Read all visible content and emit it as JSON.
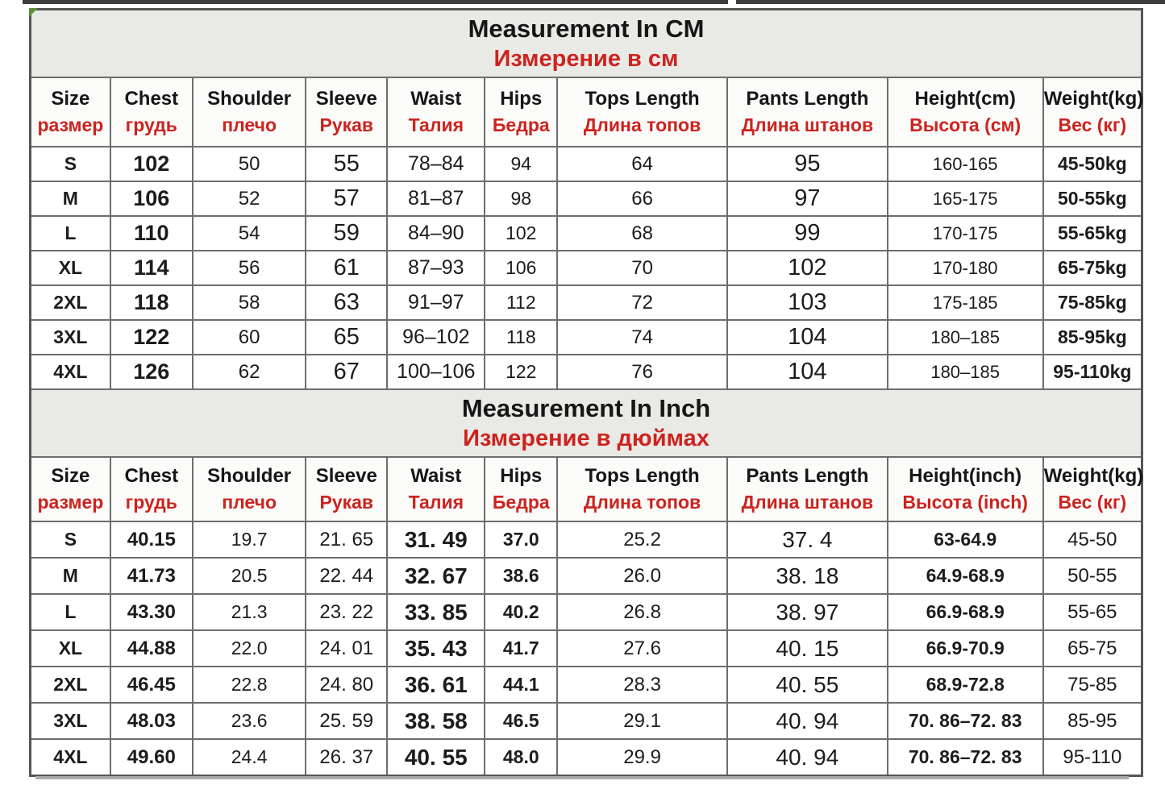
{
  "colors": {
    "red": "#cc231e",
    "border": "#6d6d6d",
    "outer_border": "#565656",
    "title_bg": "#e9e9e6",
    "header_bg": "#fbfbfa",
    "strip": "#3d3d3d",
    "green": "#5a8f3c",
    "text": "#161616"
  },
  "chart_data": [
    {
      "type": "table",
      "title_en": "Measurement In CM",
      "title_ru": "Измерение в см",
      "columns": [
        {
          "en": "Size",
          "ru": "размер"
        },
        {
          "en": "Chest",
          "ru": "грудь"
        },
        {
          "en": "Shoulder",
          "ru": "плечо"
        },
        {
          "en": "Sleeve",
          "ru": "Рукав"
        },
        {
          "en": "Waist",
          "ru": "Талия"
        },
        {
          "en": "Hips",
          "ru": "Бедра"
        },
        {
          "en": "Tops Length",
          "ru": "Длина топов"
        },
        {
          "en": "Pants Length",
          "ru": "Длина штанов"
        },
        {
          "en": "Height(cm)",
          "ru": "Высота (см)"
        },
        {
          "en": "Weight(kg)",
          "ru": "Вес (кг)"
        }
      ],
      "rows": [
        [
          "S",
          "102",
          "50",
          "55",
          "78–84",
          "94",
          "64",
          "95",
          "160-165",
          "45-50kg"
        ],
        [
          "M",
          "106",
          "52",
          "57",
          "81–87",
          "98",
          "66",
          "97",
          "165-175",
          "50-55kg"
        ],
        [
          "L",
          "110",
          "54",
          "59",
          "84–90",
          "102",
          "68",
          "99",
          "170-175",
          "55-65kg"
        ],
        [
          "XL",
          "114",
          "56",
          "61",
          "87–93",
          "106",
          "70",
          "102",
          "170-180",
          "65-75kg"
        ],
        [
          "2XL",
          "118",
          "58",
          "63",
          "91–97",
          "112",
          "72",
          "103",
          "175-185",
          "75-85kg"
        ],
        [
          "3XL",
          "122",
          "60",
          "65",
          "96–102",
          "118",
          "74",
          "104",
          "180–185",
          "85-95kg"
        ],
        [
          "4XL",
          "126",
          "62",
          "67",
          "100–106",
          "122",
          "76",
          "104",
          "180–185",
          "95-110kg"
        ]
      ]
    },
    {
      "type": "table",
      "title_en": "Measurement In Inch",
      "title_ru": "Измерение в дюймах",
      "columns": [
        {
          "en": "Size",
          "ru": "размер"
        },
        {
          "en": "Chest",
          "ru": "грудь"
        },
        {
          "en": "Shoulder",
          "ru": "плечо"
        },
        {
          "en": "Sleeve",
          "ru": "Рукав"
        },
        {
          "en": "Waist",
          "ru": "Талия"
        },
        {
          "en": "Hips",
          "ru": "Бедра"
        },
        {
          "en": "Tops Length",
          "ru": "Длина топов"
        },
        {
          "en": "Pants Length",
          "ru": "Длина штанов"
        },
        {
          "en": "Height(inch)",
          "ru": "Высота (inch)"
        },
        {
          "en": "Weight(kg)",
          "ru": "Вес (кг)"
        }
      ],
      "rows": [
        [
          "S",
          "40.15",
          "19.7",
          "21. 65",
          "31. 49",
          "37.0",
          "25.2",
          "37. 4",
          "63-64.9",
          "45-50"
        ],
        [
          "M",
          "41.73",
          "20.5",
          "22. 44",
          "32. 67",
          "38.6",
          "26.0",
          "38. 18",
          "64.9-68.9",
          "50-55"
        ],
        [
          "L",
          "43.30",
          "21.3",
          "23. 22",
          "33. 85",
          "40.2",
          "26.8",
          "38. 97",
          "66.9-68.9",
          "55-65"
        ],
        [
          "XL",
          "44.88",
          "22.0",
          "24. 01",
          "35. 43",
          "41.7",
          "27.6",
          "40. 15",
          "66.9-70.9",
          "65-75"
        ],
        [
          "2XL",
          "46.45",
          "22.8",
          "24. 80",
          "36. 61",
          "44.1",
          "28.3",
          "40. 55",
          "68.9-72.8",
          "75-85"
        ],
        [
          "3XL",
          "48.03",
          "23.6",
          "25. 59",
          "38. 58",
          "46.5",
          "29.1",
          "40. 94",
          "70. 86–72. 83",
          "85-95"
        ],
        [
          "4XL",
          "49.60",
          "24.4",
          "26. 37",
          "40. 55",
          "48.0",
          "29.9",
          "40. 94",
          "70. 86–72. 83",
          "95-110"
        ]
      ]
    }
  ]
}
